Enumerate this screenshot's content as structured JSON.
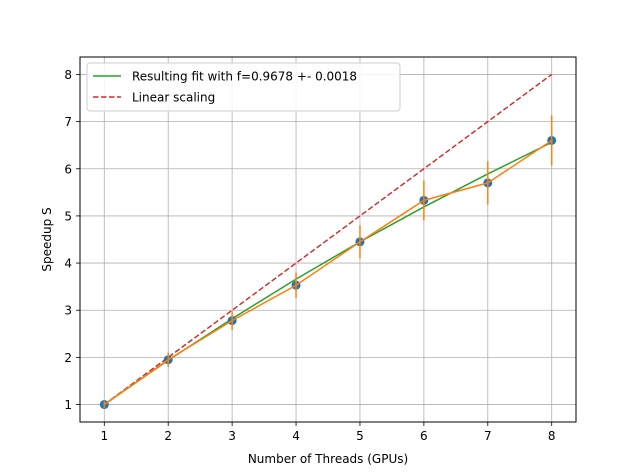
{
  "chart_data": {
    "type": "line",
    "xlabel": "Number of Threads (GPUs)",
    "ylabel": "Speedup S",
    "xlim": [
      0.62,
      8.38
    ],
    "ylim": [
      0.63,
      8.37
    ],
    "xticks": [
      1,
      2,
      3,
      4,
      5,
      6,
      7,
      8
    ],
    "yticks": [
      1,
      2,
      3,
      4,
      5,
      6,
      7,
      8
    ],
    "grid": true,
    "legend_position": "top-left",
    "series": [
      {
        "name": "Resulting fit with f=0.9678 +- 0.0018",
        "style": "solid",
        "color": "#2ca02c",
        "x": [
          1,
          2,
          3,
          4,
          5,
          6,
          7,
          8
        ],
        "y": [
          1.0,
          1.94,
          2.82,
          3.66,
          4.45,
          5.19,
          5.89,
          6.56
        ]
      },
      {
        "name": "Linear scaling",
        "style": "dashed",
        "color": "#d62728",
        "x": [
          1,
          2,
          3,
          4,
          5,
          6,
          7,
          8
        ],
        "y": [
          1,
          2,
          3,
          4,
          5,
          6,
          7,
          8
        ]
      },
      {
        "name": "",
        "style": "markers-errorbars",
        "color": "#1f77b4",
        "errorbar_color": "#ff7f0e",
        "line_color": "#ff7f0e",
        "x": [
          1,
          2,
          3,
          4,
          5,
          6,
          7,
          8
        ],
        "y": [
          1.0,
          1.95,
          2.78,
          3.53,
          4.45,
          5.33,
          5.7,
          6.6
        ],
        "yerr": [
          0.08,
          0.15,
          0.2,
          0.27,
          0.35,
          0.42,
          0.46,
          0.53
        ]
      }
    ]
  }
}
